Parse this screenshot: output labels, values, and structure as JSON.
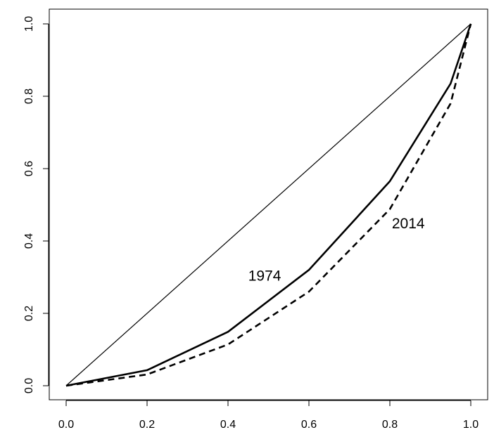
{
  "chart_data": {
    "type": "line",
    "title": "",
    "xlabel": "",
    "ylabel": "",
    "xlim": [
      0,
      1
    ],
    "ylim": [
      0,
      1
    ],
    "x_ticks": [
      "0.0",
      "0.2",
      "0.4",
      "0.6",
      "0.8",
      "1.0"
    ],
    "y_ticks": [
      "0.0",
      "0.2",
      "0.4",
      "0.6",
      "0.8",
      "1.0"
    ],
    "grid": false,
    "legend": "none",
    "series": [
      {
        "name": "",
        "style": "solid-thin",
        "x": [
          0,
          1
        ],
        "y": [
          0,
          1
        ]
      },
      {
        "name": "1974",
        "style": "solid-thick",
        "x": [
          0,
          0.2,
          0.4,
          0.6,
          0.8,
          0.95,
          1.0
        ],
        "y": [
          0,
          0.043,
          0.149,
          0.32,
          0.565,
          0.835,
          1.0
        ]
      },
      {
        "name": "2014",
        "style": "dashed-thick",
        "x": [
          0,
          0.2,
          0.4,
          0.6,
          0.8,
          0.95,
          1.0
        ],
        "y": [
          0,
          0.031,
          0.114,
          0.26,
          0.488,
          0.78,
          1.0
        ]
      }
    ],
    "annotations": [
      {
        "text": "1974",
        "x": 0.45,
        "y": 0.29
      },
      {
        "text": "2014",
        "x": 0.805,
        "y": 0.435
      }
    ],
    "colors": {
      "line": "#000000",
      "background": "#ffffff"
    }
  }
}
